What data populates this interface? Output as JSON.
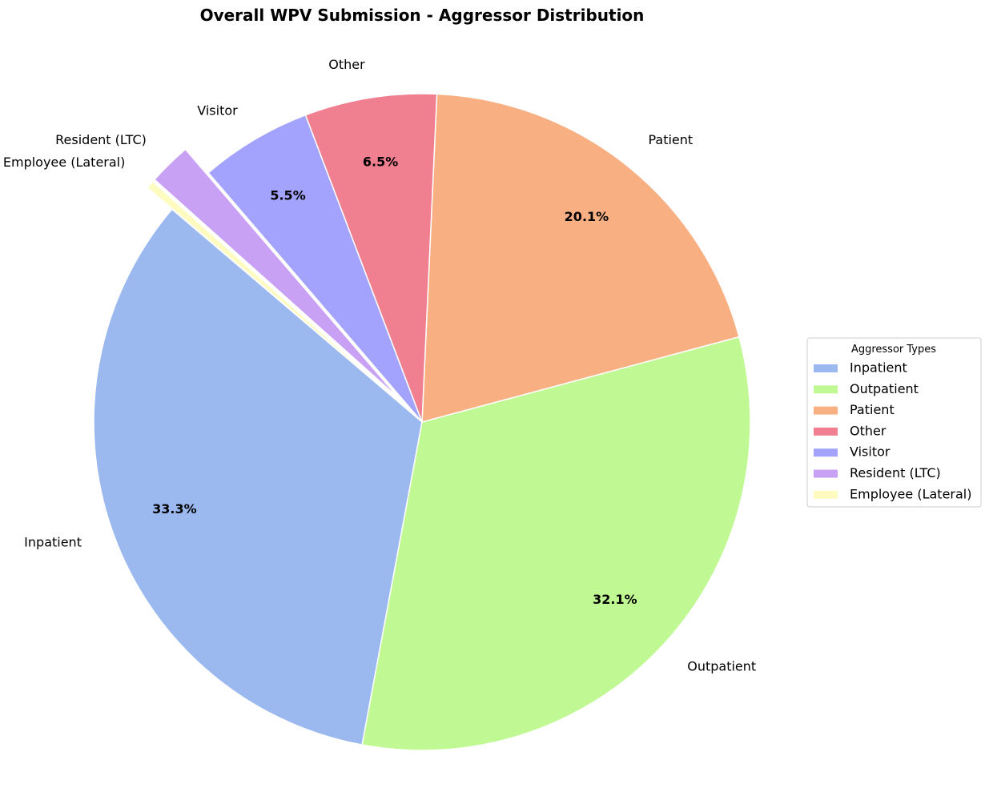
{
  "chart_data": {
    "type": "pie",
    "title": "Overall WPV Submission - Aggressor Distribution",
    "slices": [
      {
        "label": "Inpatient",
        "pct": 33.3,
        "pct_label": "33.3%",
        "color": "#9bb9ee",
        "explode": false
      },
      {
        "label": "Outpatient",
        "pct": 32.1,
        "pct_label": "32.1%",
        "color": "#c0f893",
        "explode": false
      },
      {
        "label": "Patient",
        "pct": 20.1,
        "pct_label": "20.1%",
        "color": "#f8b083",
        "explode": false
      },
      {
        "label": "Other",
        "pct": 6.5,
        "pct_label": "6.5%",
        "color": "#f07f90",
        "explode": false
      },
      {
        "label": "Visitor",
        "pct": 5.5,
        "pct_label": "5.5%",
        "color": "#a3a3fd",
        "explode": false
      },
      {
        "label": "Resident (LTC)",
        "pct": 2.1,
        "pct_label": "",
        "color": "#c9a1f4",
        "explode": true
      },
      {
        "label": "Employee (Lateral)",
        "pct": 0.4,
        "pct_label": "",
        "color": "#fdfbc0",
        "explode": true
      }
    ],
    "legend": {
      "title": "Aggressor Types",
      "placement": "right",
      "entries": [
        "Inpatient",
        "Outpatient",
        "Patient",
        "Other",
        "Visitor",
        "Resident (LTC)",
        "Employee (Lateral)"
      ]
    }
  }
}
